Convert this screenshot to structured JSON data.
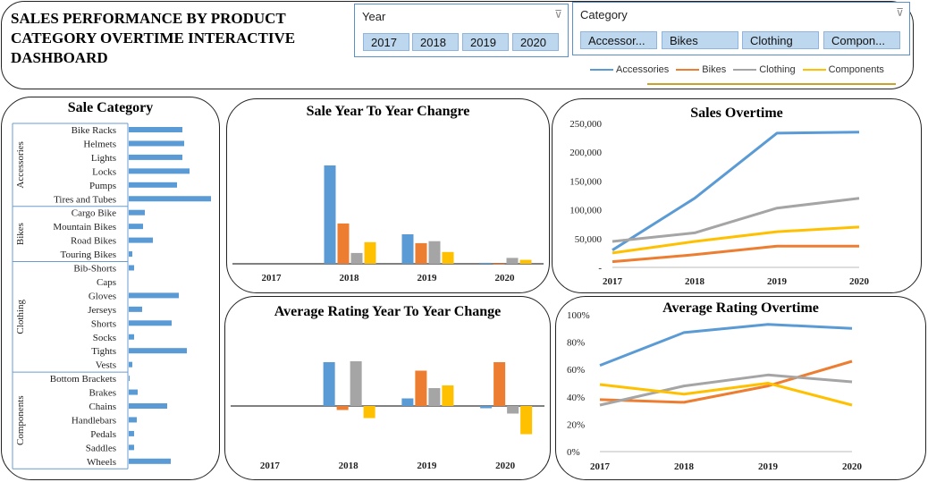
{
  "header": {
    "title": "SALES PERFORMANCE BY PRODUCT\n CATEGORY  OVERTIME INTERACTIVE\nDASHBOARD"
  },
  "slicers": {
    "year": {
      "title": "Year",
      "items": [
        "2017",
        "2018",
        "2019",
        "2020"
      ]
    },
    "category": {
      "title": "Category",
      "items": [
        "Accessor...",
        "Bikes",
        "Clothing",
        "Compon..."
      ]
    }
  },
  "legend": {
    "items": [
      {
        "name": "Accessories",
        "color": "#5b9bd5"
      },
      {
        "name": "Bikes",
        "color": "#ed7d31"
      },
      {
        "name": "Clothing",
        "color": "#a5a5a5"
      },
      {
        "name": "Components",
        "color": "#ffc000"
      }
    ]
  },
  "icons": {
    "slicer_clear": "filter-clear-icon"
  },
  "chart_data": [
    {
      "id": "sale-category",
      "type": "bar",
      "orientation": "horizontal",
      "title": "Sale Category",
      "groups": [
        {
          "name": "Accessories",
          "categories": [
            "Bike Racks",
            "Helmets",
            "Lights",
            "Locks",
            "Pumps",
            "Tires and Tubes"
          ],
          "values": [
            60,
            62,
            60,
            68,
            54,
            92
          ]
        },
        {
          "name": "Bikes",
          "categories": [
            "Cargo Bike",
            "Mountain Bikes",
            "Road Bikes",
            "Touring Bikes"
          ],
          "values": [
            18,
            16,
            27,
            4
          ]
        },
        {
          "name": "Clothing",
          "categories": [
            "Bib-Shorts",
            "Caps",
            "Gloves",
            "Jerseys",
            "Shorts",
            "Socks",
            "Tights",
            "Vests"
          ],
          "values": [
            6,
            0,
            56,
            15,
            48,
            6,
            65,
            4
          ]
        },
        {
          "name": "Components",
          "categories": [
            "Bottom Brackets",
            "Brakes",
            "Chains",
            "Handlebars",
            "Pedals",
            "Saddles",
            "Wheels"
          ],
          "values": [
            1,
            10,
            43,
            9,
            6,
            6,
            47
          ]
        }
      ],
      "color": "#5b9bd5"
    },
    {
      "id": "sale-yoy",
      "type": "bar",
      "title": "Sale Year To Year Changre",
      "categories": [
        "2017",
        "2018",
        "2019",
        "2020"
      ],
      "series": [
        {
          "name": "Accessories",
          "values": [
            null,
            1.0,
            0.3,
            0.01
          ]
        },
        {
          "name": "Bikes",
          "values": [
            null,
            0.41,
            0.21,
            0.0
          ]
        },
        {
          "name": "Clothing",
          "values": [
            null,
            0.11,
            0.23,
            0.06
          ]
        },
        {
          "name": "Components",
          "values": [
            null,
            0.22,
            0.12,
            0.04
          ]
        }
      ]
    },
    {
      "id": "sales-overtime",
      "type": "line",
      "title": "Sales Overtime",
      "categories": [
        "2017",
        "2018",
        "2019",
        "2020"
      ],
      "y_ticks": [
        "-",
        "50,000",
        "100,000",
        "150,000",
        "200,000",
        "250,000"
      ],
      "ylim": [
        0,
        250000
      ],
      "series": [
        {
          "name": "Accessories",
          "values": [
            30000,
            120000,
            233000,
            235000
          ]
        },
        {
          "name": "Bikes",
          "values": [
            10000,
            22000,
            37000,
            37000
          ]
        },
        {
          "name": "Clothing",
          "values": [
            45000,
            60000,
            103000,
            120000
          ]
        },
        {
          "name": "Components",
          "values": [
            25000,
            45000,
            62000,
            70000
          ]
        }
      ]
    },
    {
      "id": "rating-yoy",
      "type": "bar",
      "title": "Average Rating Year To Year Change",
      "categories": [
        "2017",
        "2018",
        "2019",
        "2020"
      ],
      "series": [
        {
          "name": "Accessories",
          "values": [
            null,
            0.98,
            0.17,
            -0.05
          ]
        },
        {
          "name": "Bikes",
          "values": [
            null,
            -0.09,
            0.79,
            0.98
          ]
        },
        {
          "name": "Clothing",
          "values": [
            null,
            1.0,
            0.4,
            -0.17
          ]
        },
        {
          "name": "Components",
          "values": [
            null,
            -0.27,
            0.46,
            -0.63
          ]
        }
      ]
    },
    {
      "id": "rating-overtime",
      "type": "line",
      "title": "Average Rating Overtime",
      "categories": [
        "2017",
        "2018",
        "2019",
        "2020"
      ],
      "y_ticks": [
        "0%",
        "20%",
        "40%",
        "60%",
        "80%",
        "100%"
      ],
      "ylim": [
        0,
        1
      ],
      "series": [
        {
          "name": "Accessories",
          "values": [
            0.63,
            0.87,
            0.93,
            0.9
          ]
        },
        {
          "name": "Bikes",
          "values": [
            0.38,
            0.36,
            0.48,
            0.66
          ]
        },
        {
          "name": "Clothing",
          "values": [
            0.34,
            0.48,
            0.56,
            0.51
          ]
        },
        {
          "name": "Components",
          "values": [
            0.49,
            0.42,
            0.5,
            0.34
          ]
        }
      ]
    }
  ]
}
